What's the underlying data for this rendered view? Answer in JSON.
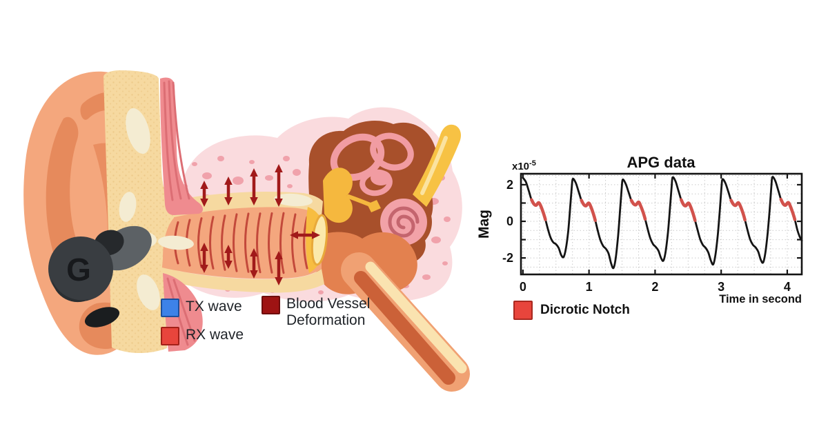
{
  "illustration": {
    "earbud": {
      "logo": "G"
    },
    "legend": [
      {
        "label": "TX wave",
        "color": "#3d82e8",
        "border": "#1c4f9c"
      },
      {
        "label": "RX wave",
        "color": "#e8453c",
        "border": "#a32018"
      },
      {
        "label": "Blood Vessel Deformation",
        "color": "#9e1313",
        "border": "#6e0c0c"
      }
    ],
    "colors": {
      "pinna": "#f4a77d",
      "pinna_fold": "#e68a5c",
      "cartilage": "#f6d9a0",
      "muscle": "#ef8b8f",
      "tissue": "#fadbde",
      "tissue_spot": "#f0a2ab",
      "canal": "#f4a77e",
      "canal_rib": "#c3493b",
      "middle_ear": "#a8502b",
      "inner_ear_pink": "#f19ca2",
      "ossicle_gold": "#f5b83e",
      "bone": "#e3814f",
      "arrow": "#a11a1a",
      "earbud_body": "#393d41",
      "earbud_tip": "#5c6165"
    }
  },
  "chart_data": {
    "type": "line",
    "title": "APG data",
    "xlabel": "Time in second",
    "ylabel": "Mag",
    "scale_label": "x10",
    "scale_exponent": "-5",
    "xlim": [
      -0.03,
      4.22
    ],
    "ylim": [
      -2.9,
      2.6
    ],
    "xticks": [
      0,
      1,
      2,
      3,
      4
    ],
    "yticks_labeled": [
      2,
      0,
      -2
    ],
    "yticks_minor": [
      1,
      -1
    ],
    "grid": {
      "x_minor_step": 0.25,
      "y_minor_step": 0.5,
      "color": "#c9c9c9",
      "style": "dotted"
    },
    "line_color": "#141414",
    "notch_color": "#d2524c",
    "legend": {
      "label": "Dicrotic Notch",
      "color": "#e8453c",
      "border": "#a8281f"
    },
    "notch_intervals": [
      [
        0.13,
        0.34
      ],
      [
        0.885,
        1.095
      ],
      [
        1.64,
        1.85
      ],
      [
        2.395,
        2.605
      ],
      [
        3.15,
        3.36
      ],
      [
        3.905,
        4.115
      ]
    ],
    "series": [
      {
        "name": "APG",
        "points": [
          [
            0,
            2.38
          ],
          [
            0.045,
            2.15
          ],
          [
            0.09,
            1.65
          ],
          [
            0.13,
            1.18
          ],
          [
            0.165,
            0.95
          ],
          [
            0.2,
            0.88
          ],
          [
            0.24,
            1.02
          ],
          [
            0.275,
            0.8
          ],
          [
            0.31,
            0.45
          ],
          [
            0.34,
            0.1
          ],
          [
            0.38,
            -0.45
          ],
          [
            0.42,
            -0.9
          ],
          [
            0.46,
            -1.15
          ],
          [
            0.5,
            -1.25
          ],
          [
            0.54,
            -1.45
          ],
          [
            0.58,
            -1.85
          ],
          [
            0.615,
            -1.95
          ],
          [
            0.65,
            -1.5
          ],
          [
            0.685,
            -0.55
          ],
          [
            0.715,
            0.75
          ],
          [
            0.74,
            1.9
          ],
          [
            0.755,
            2.32
          ],
          [
            0.8,
            2.1
          ],
          [
            0.845,
            1.6
          ],
          [
            0.885,
            1.15
          ],
          [
            0.92,
            0.92
          ],
          [
            0.955,
            0.85
          ],
          [
            0.995,
            1.0
          ],
          [
            1.03,
            0.78
          ],
          [
            1.065,
            0.42
          ],
          [
            1.095,
            0.05
          ],
          [
            1.135,
            -0.55
          ],
          [
            1.175,
            -1.05
          ],
          [
            1.215,
            -1.35
          ],
          [
            1.255,
            -1.5
          ],
          [
            1.295,
            -1.75
          ],
          [
            1.335,
            -2.3
          ],
          [
            1.37,
            -2.55
          ],
          [
            1.405,
            -2.0
          ],
          [
            1.44,
            -0.8
          ],
          [
            1.47,
            0.6
          ],
          [
            1.495,
            1.8
          ],
          [
            1.51,
            2.28
          ],
          [
            1.555,
            2.05
          ],
          [
            1.6,
            1.58
          ],
          [
            1.64,
            1.15
          ],
          [
            1.675,
            0.95
          ],
          [
            1.71,
            0.9
          ],
          [
            1.75,
            1.05
          ],
          [
            1.785,
            0.82
          ],
          [
            1.82,
            0.48
          ],
          [
            1.85,
            0.12
          ],
          [
            1.89,
            -0.45
          ],
          [
            1.93,
            -0.95
          ],
          [
            1.97,
            -1.25
          ],
          [
            2.01,
            -1.4
          ],
          [
            2.05,
            -1.6
          ],
          [
            2.09,
            -2.0
          ],
          [
            2.125,
            -2.15
          ],
          [
            2.16,
            -1.65
          ],
          [
            2.195,
            -0.6
          ],
          [
            2.225,
            0.7
          ],
          [
            2.25,
            1.85
          ],
          [
            2.265,
            2.4
          ],
          [
            2.31,
            2.18
          ],
          [
            2.355,
            1.65
          ],
          [
            2.395,
            1.18
          ],
          [
            2.43,
            0.92
          ],
          [
            2.465,
            0.85
          ],
          [
            2.505,
            1.0
          ],
          [
            2.54,
            0.78
          ],
          [
            2.575,
            0.42
          ],
          [
            2.605,
            0.05
          ],
          [
            2.645,
            -0.5
          ],
          [
            2.685,
            -1.0
          ],
          [
            2.725,
            -1.3
          ],
          [
            2.765,
            -1.45
          ],
          [
            2.805,
            -1.7
          ],
          [
            2.845,
            -2.15
          ],
          [
            2.88,
            -2.35
          ],
          [
            2.915,
            -1.8
          ],
          [
            2.95,
            -0.7
          ],
          [
            2.98,
            0.65
          ],
          [
            3.005,
            1.85
          ],
          [
            3.02,
            2.3
          ],
          [
            3.065,
            2.08
          ],
          [
            3.11,
            1.6
          ],
          [
            3.15,
            1.15
          ],
          [
            3.185,
            0.93
          ],
          [
            3.22,
            0.87
          ],
          [
            3.26,
            1.02
          ],
          [
            3.295,
            0.8
          ],
          [
            3.33,
            0.45
          ],
          [
            3.36,
            0.08
          ],
          [
            3.4,
            -0.5
          ],
          [
            3.44,
            -1.0
          ],
          [
            3.48,
            -1.28
          ],
          [
            3.52,
            -1.42
          ],
          [
            3.56,
            -1.65
          ],
          [
            3.6,
            -2.1
          ],
          [
            3.635,
            -2.25
          ],
          [
            3.67,
            -1.7
          ],
          [
            3.705,
            -0.6
          ],
          [
            3.735,
            0.7
          ],
          [
            3.76,
            1.9
          ],
          [
            3.775,
            2.42
          ],
          [
            3.82,
            2.2
          ],
          [
            3.865,
            1.68
          ],
          [
            3.905,
            1.2
          ],
          [
            3.94,
            0.95
          ],
          [
            3.975,
            0.88
          ],
          [
            4.015,
            1.03
          ],
          [
            4.05,
            0.8
          ],
          [
            4.085,
            0.45
          ],
          [
            4.115,
            0.1
          ],
          [
            4.155,
            -0.5
          ],
          [
            4.19,
            -0.85
          ],
          [
            4.22,
            -1.05
          ]
        ]
      }
    ]
  }
}
